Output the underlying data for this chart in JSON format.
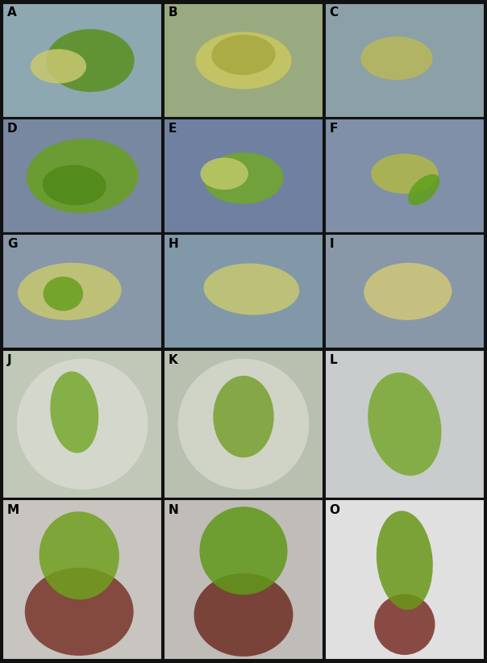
{
  "labels": [
    "A",
    "B",
    "C",
    "D",
    "E",
    "F",
    "G",
    "H",
    "I",
    "J",
    "K",
    "L",
    "M",
    "N",
    "O"
  ],
  "grid_rows": 5,
  "grid_cols": 3,
  "fig_width": 6.04,
  "fig_height": 8.22,
  "dpi": 100,
  "label_fontsize": 11,
  "label_color": "#000000",
  "label_weight": "bold",
  "row_heights": [
    1.0,
    1.0,
    1.0,
    1.3,
    1.4
  ],
  "hspace": 0.008,
  "wspace": 0.008,
  "panel_avg_colors": [
    [
      "#8da4a8",
      "#a0a878",
      "#8ca0a0"
    ],
    [
      "#8090a0",
      "#7888a0",
      "#8898a8"
    ],
    [
      "#9098a0",
      "#8898a8",
      "#9298a8"
    ],
    [
      "#b8c0b0",
      "#b8c0b0",
      "#c8cccc"
    ],
    [
      "#c8c4c0",
      "#c0bcb8",
      "#e0e0e0"
    ]
  ],
  "border_color": "#111111",
  "border_linewidth": 1.5
}
